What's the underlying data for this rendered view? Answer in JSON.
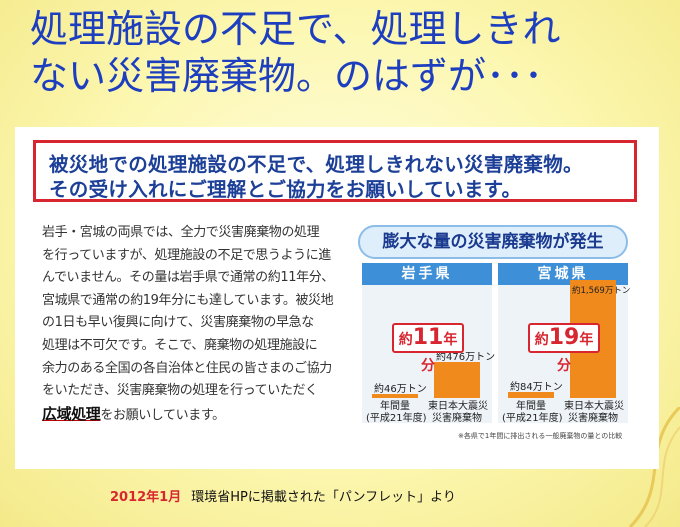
{
  "slide": {
    "title_line1": "処理施設の不足で、処理しきれ",
    "title_line2": "ない災害廃棄物。のはずが･･･",
    "caption_date": "2012年1月",
    "caption_text": "環境省HPに掲載された「パンフレット」より"
  },
  "pamphlet": {
    "headline_line1": "被災地での処理施設の不足で、処理しきれない災害廃棄物。",
    "headline_line2": "その受け入れにご理解とご協力をお願いしています。",
    "body_lines": [
      "岩手・宮城の両県では、全力で災害廃棄物の処理",
      "を行っていますが、処理施設の不足で思うように進",
      "んでいません。その量は岩手県で通常の約11年分、",
      "宮城県で通常の約19年分にも達しています。被災地",
      "の1日も早い復興に向けて、災害廃棄物の早急な",
      "処理は不可欠です。そこで、廃棄物の処理施設に",
      "余力のある全国の各自治体と住民の皆さまのご協力",
      "をいただき、災害廃棄物の処理を行っていただく"
    ],
    "body_last_highlight": "広域処理",
    "body_last_rest": "をお願いしています。"
  },
  "chart_data": {
    "type": "bar",
    "title": "膨大な量の災害廃棄物が発生",
    "categories": [
      "年間量\n(平成21年度)",
      "東日本大震災\n災害廃棄物"
    ],
    "panels": [
      {
        "name": "岩手県",
        "values": [
          46,
          476
        ],
        "value_labels": [
          "約46万トン",
          "約476万トン"
        ],
        "ratio_prefix": "約",
        "ratio_number": "11",
        "ratio_suffix": "年分"
      },
      {
        "name": "宮城県",
        "values": [
          84,
          1569
        ],
        "value_labels": [
          "約84万トン",
          "約1,569万トン"
        ],
        "ratio_prefix": "約",
        "ratio_number": "19",
        "ratio_suffix": "年分"
      }
    ],
    "unit": "万トン",
    "ylim": [
      0,
      1569
    ],
    "footnote": "※各県で1年間に排出される一般廃棄物の量との比較",
    "colors": {
      "bar": "#f08a1c",
      "panel_header": "#3d8fd8",
      "accent": "#d7262f"
    }
  }
}
